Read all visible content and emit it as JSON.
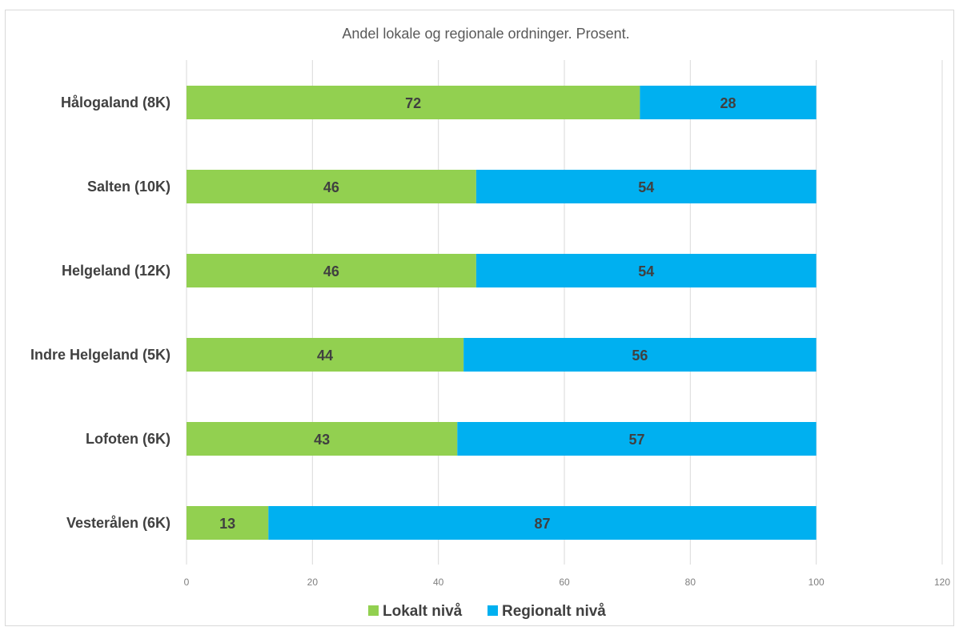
{
  "chart_data": {
    "type": "bar",
    "orientation": "horizontal",
    "stacked": true,
    "title": "Andel lokale og regionale ordninger. Prosent.",
    "categories": [
      "Hålogaland (8K)",
      "Salten (10K)",
      "Helgeland (12K)",
      "Indre Helgeland (5K)",
      "Lofoten (6K)",
      "Vesterålen (6K)"
    ],
    "series": [
      {
        "name": "Lokalt nivå",
        "values": [
          72,
          46,
          46,
          44,
          43,
          13
        ],
        "color": "#92d050"
      },
      {
        "name": "Regionalt nivå",
        "values": [
          28,
          54,
          54,
          56,
          57,
          87
        ],
        "color": "#00b0f0"
      }
    ],
    "xlim": [
      0,
      120
    ],
    "xticks": [
      0,
      20,
      40,
      60,
      80,
      100,
      120
    ],
    "grid": true,
    "legend_position": "bottom",
    "data_labels": true
  }
}
